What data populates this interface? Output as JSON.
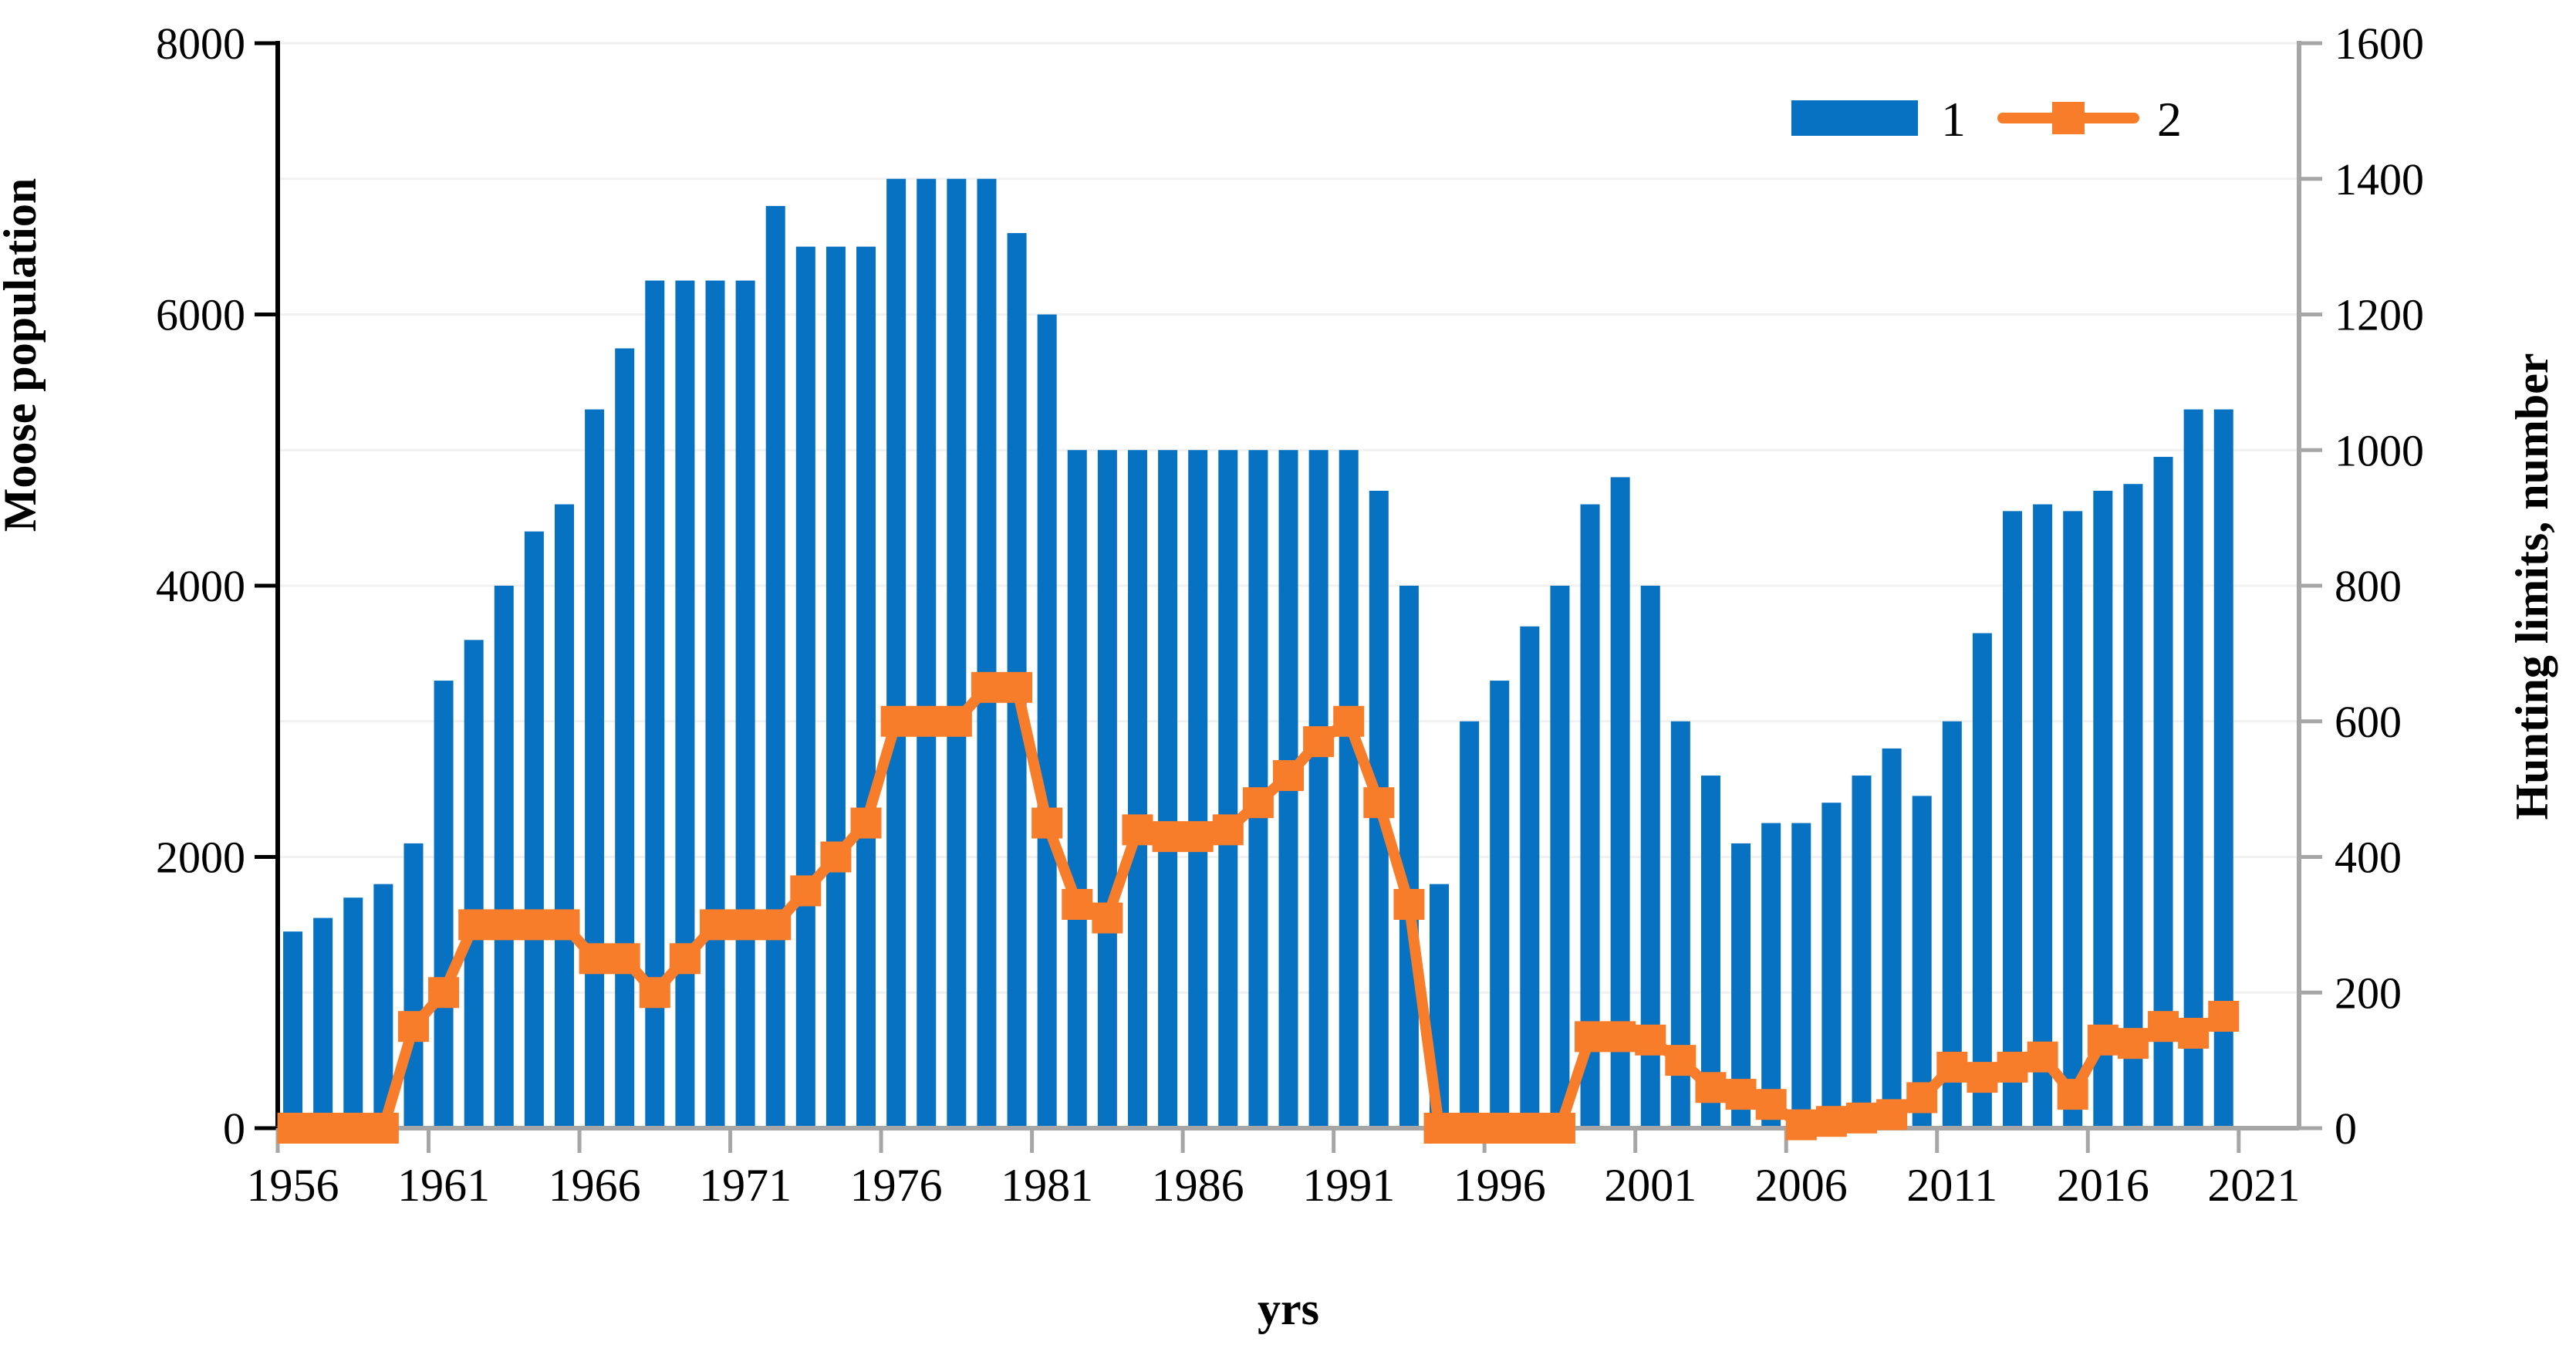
{
  "chart_data": {
    "type": "bar",
    "subtype": "combo-bar-line-dual-axis",
    "categories": [
      1956,
      1957,
      1958,
      1959,
      1960,
      1961,
      1962,
      1963,
      1964,
      1965,
      1966,
      1967,
      1968,
      1969,
      1970,
      1971,
      1972,
      1973,
      1974,
      1975,
      1976,
      1977,
      1978,
      1979,
      1980,
      1981,
      1982,
      1983,
      1984,
      1985,
      1986,
      1987,
      1988,
      1989,
      1990,
      1991,
      1992,
      1993,
      1994,
      1995,
      1996,
      1997,
      1998,
      1999,
      2000,
      2001,
      2002,
      2003,
      2004,
      2005,
      2006,
      2007,
      2008,
      2009,
      2010,
      2011,
      2012,
      2013,
      2014,
      2015,
      2016,
      2017,
      2018,
      2019,
      2020
    ],
    "series": [
      {
        "name": "1",
        "type": "bar",
        "axis": "left",
        "color": "#0872C2",
        "values": [
          1450,
          1550,
          1700,
          1800,
          2100,
          3300,
          3600,
          4000,
          4400,
          4600,
          5300,
          5750,
          6250,
          6250,
          6250,
          6250,
          6800,
          6500,
          6500,
          6500,
          7000,
          7000,
          7000,
          7000,
          6600,
          6000,
          5000,
          5000,
          5000,
          5000,
          5000,
          5000,
          5000,
          5000,
          5000,
          5000,
          4700,
          4000,
          1800,
          3000,
          3300,
          3700,
          4000,
          4600,
          4800,
          4000,
          3000,
          2600,
          2100,
          2250,
          2250,
          2400,
          2600,
          2800,
          2450,
          3000,
          3650,
          4550,
          4600,
          4550,
          4700,
          4750,
          4950,
          5300,
          5300
        ]
      },
      {
        "name": "2",
        "type": "line",
        "axis": "right",
        "color": "#F87D2A",
        "values": [
          0,
          0,
          0,
          0,
          150,
          200,
          300,
          300,
          300,
          300,
          250,
          250,
          200,
          250,
          300,
          300,
          300,
          350,
          400,
          450,
          600,
          600,
          600,
          650,
          650,
          450,
          330,
          310,
          440,
          430,
          430,
          440,
          480,
          520,
          570,
          600,
          480,
          330,
          0,
          0,
          0,
          0,
          0,
          135,
          135,
          130,
          100,
          60,
          50,
          35,
          5,
          10,
          15,
          20,
          45,
          90,
          75,
          90,
          105,
          50,
          130,
          125,
          150,
          140,
          165
        ]
      }
    ],
    "left_axis": {
      "title": "Moose population",
      "min": 0,
      "max": 8000,
      "tick_labels": [
        "0",
        "2000",
        "4000",
        "6000",
        "8000"
      ],
      "gridline_step": 1000
    },
    "right_axis": {
      "title": "Hunting limits, number",
      "min": 0,
      "max": 1600,
      "tick_labels": [
        "0",
        "200",
        "400",
        "600",
        "800",
        "1000",
        "1200",
        "1400",
        "1600"
      ]
    },
    "x_axis": {
      "title": "yrs",
      "tick_labels": [
        "1956",
        "1961",
        "1966",
        "1971",
        "1976",
        "1981",
        "1986",
        "1991",
        "1996",
        "2001",
        "2006",
        "2011",
        "2016",
        "2021"
      ],
      "categories_total": 67
    },
    "legend": {
      "items": [
        {
          "label": "1",
          "type": "bar"
        },
        {
          "label": "2",
          "type": "line"
        }
      ],
      "position": "top-right"
    },
    "grid": true
  },
  "colors": {
    "bar": "#0872C2",
    "line": "#F87D2A",
    "gridline": "#F1F1F1",
    "axis_left": "#000000",
    "axis_gray": "#A6A6A6",
    "text": "#000000",
    "background": "#FFFFFF"
  }
}
